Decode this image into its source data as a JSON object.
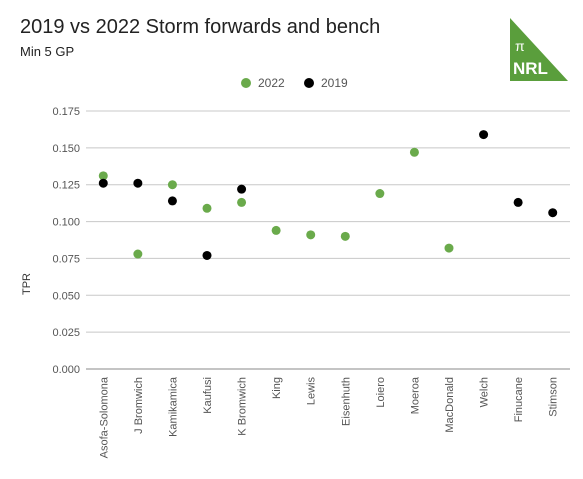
{
  "title": "2019 vs 2022 Storm forwards and bench",
  "subtitle": "Min 5 GP",
  "logo": {
    "pi_text": "π",
    "text": "NRL",
    "color": "#5a9e3c"
  },
  "colors": {
    "2022": "#6aaa4b",
    "2019": "#000000",
    "grid": "#c8c8c8"
  },
  "chart_data": {
    "type": "scatter",
    "title": "2019 vs 2022 Storm forwards and bench",
    "subtitle": "Min 5 GP",
    "xlabel": "",
    "ylabel": "TPR",
    "ylim": [
      0,
      0.175
    ],
    "yticks": [
      "0.000",
      "0.025",
      "0.050",
      "0.075",
      "0.100",
      "0.125",
      "0.150",
      "0.175"
    ],
    "grid": true,
    "legend_position": "top-center",
    "categories": [
      "Asofa-Solomona",
      "J Bromwich",
      "Kamikamica",
      "Kaufusi",
      "K Bromwich",
      "King",
      "Lewis",
      "Eisenhuth",
      "Loiero",
      "Moeroa",
      "MacDonald",
      "Welch",
      "Finucane",
      "Stimson"
    ],
    "series": [
      {
        "name": "2022",
        "color": "#6aaa4b",
        "values": [
          0.131,
          0.078,
          0.125,
          0.109,
          0.113,
          0.094,
          0.091,
          0.09,
          0.119,
          0.147,
          0.082,
          null,
          null,
          null
        ]
      },
      {
        "name": "2019",
        "color": "#000000",
        "values": [
          0.126,
          0.126,
          0.114,
          0.077,
          0.122,
          null,
          null,
          null,
          null,
          null,
          null,
          0.159,
          0.113,
          0.106
        ]
      }
    ]
  }
}
